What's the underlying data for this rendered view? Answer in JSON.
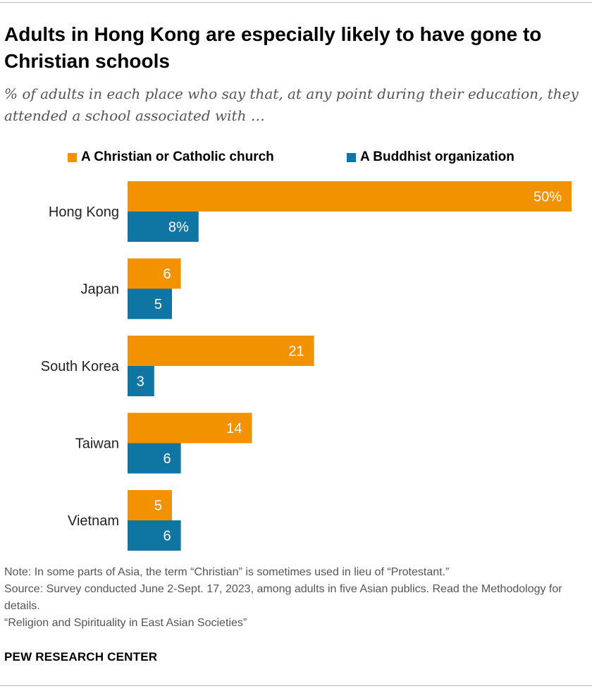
{
  "header": {
    "title": "Adults in Hong Kong are especially likely to have gone to Christian schools",
    "subtitle": "% of adults in each place who say that, at any point during their education, they attended a school associated with …"
  },
  "legend": {
    "christian": "A Christian or Catholic church",
    "buddhist": "A Buddhist organization"
  },
  "colors": {
    "christian": "#F39200",
    "buddhist": "#0F75A3"
  },
  "chart_data": {
    "type": "bar",
    "orientation": "horizontal",
    "categories": [
      "Hong Kong",
      "Japan",
      "South Korea",
      "Taiwan",
      "Vietnam"
    ],
    "series": [
      {
        "name": "A Christian or Catholic church",
        "values": [
          50,
          6,
          21,
          14,
          5
        ],
        "labels": [
          "50%",
          "6",
          "21",
          "14",
          "5"
        ]
      },
      {
        "name": "A Buddhist organization",
        "values": [
          8,
          5,
          3,
          6,
          6
        ],
        "labels": [
          "8%",
          "5",
          "3",
          "6",
          "6"
        ]
      }
    ],
    "xlim": [
      0,
      50
    ],
    "grid": false,
    "legend_position": "top"
  },
  "footer": {
    "note": "Note: In some parts of Asia, the term “Christian” is sometimes used in lieu of “Protestant.”",
    "source": "Source: Survey conducted June 2-Sept. 17, 2023, among adults in five Asian publics. Read the Methodology for details.",
    "report": "“Religion and Spirituality in East Asian Societies”",
    "brand": "PEW RESEARCH CENTER"
  }
}
